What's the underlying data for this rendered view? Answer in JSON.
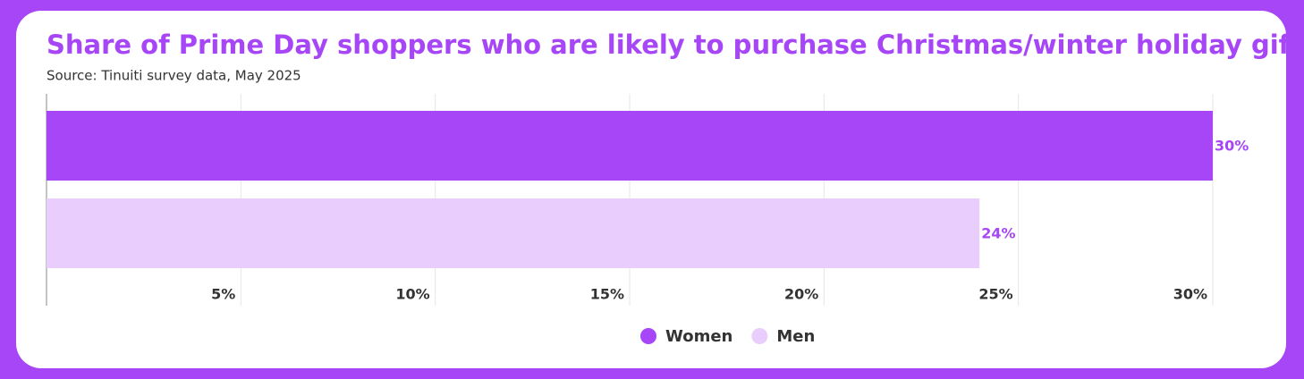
{
  "chart_data": {
    "type": "bar",
    "orientation": "horizontal",
    "title": "Share of Prime Day shoppers who are likely to purchase Christmas/winter holiday gifts.",
    "subtitle": "Source: Tinuiti survey data, May 2025",
    "categories": [
      null
    ],
    "series": [
      {
        "name": "Women",
        "color": "#a646f7",
        "values": [
          30
        ],
        "value_labels": [
          "30%"
        ]
      },
      {
        "name": "Men",
        "color": "#e9cefd",
        "values": [
          24
        ],
        "value_labels": [
          "24%"
        ]
      }
    ],
    "xlim": [
      0,
      30
    ],
    "xticks": [
      {
        "value": 5,
        "label": "5%"
      },
      {
        "value": 10,
        "label": "10%"
      },
      {
        "value": 15,
        "label": "15%"
      },
      {
        "value": 20,
        "label": "20%"
      },
      {
        "value": 25,
        "label": "25%"
      },
      {
        "value": 30,
        "label": "30%"
      }
    ],
    "grid": true,
    "legend": "bottom"
  }
}
